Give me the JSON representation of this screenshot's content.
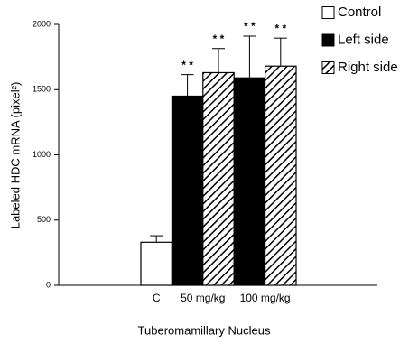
{
  "chart_data": {
    "type": "bar",
    "y_label": "Labeled HDC mRNA (pixel²)",
    "x_label": "Tuberomamillary Nucleus",
    "categories": [
      "C",
      "50 mg/kg",
      "100 mg/kg"
    ],
    "series": [
      {
        "name": "Control",
        "color": "#ffffff",
        "values": [
          330,
          null,
          null
        ],
        "errors": [
          50,
          null,
          null
        ],
        "markers": [
          null,
          null,
          null
        ]
      },
      {
        "name": "Left side",
        "color": "#000000",
        "values": [
          null,
          1450,
          1590
        ],
        "errors": [
          null,
          165,
          320
        ],
        "markers": [
          null,
          "* *",
          "* *"
        ]
      },
      {
        "name": "Right side",
        "color": "#ffffff",
        "pattern": "diagonal",
        "values": [
          null,
          1630,
          1680
        ],
        "errors": [
          null,
          185,
          215
        ],
        "markers": [
          null,
          "* *",
          "* *"
        ]
      }
    ],
    "ylim": [
      0,
      2000
    ],
    "yticks": [
      0,
      500,
      1000,
      1500,
      2000
    ],
    "grid": false,
    "legend": "top-right"
  }
}
